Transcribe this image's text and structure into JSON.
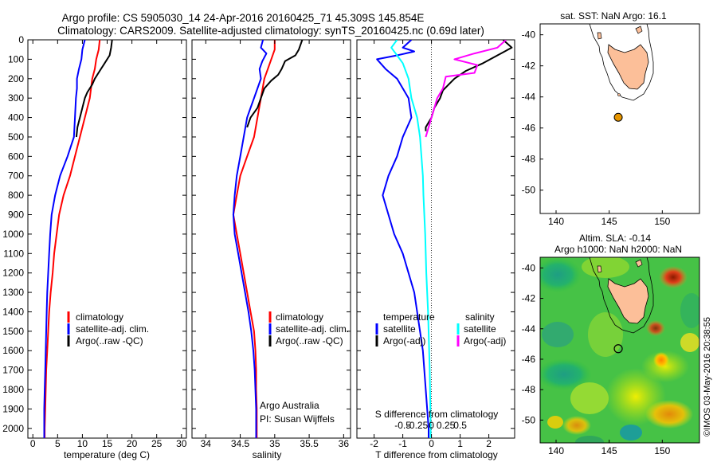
{
  "header": {
    "line1": "Argo profile: CS 5905030_14 24-Apr-2016 20160425_71 45.309S 145.854E",
    "line2": "Climatology: CARS2009. Satellite-adjusted climatology: synTS_20160425.nc (0.69d later)"
  },
  "colors": {
    "climatology": "#ff0000",
    "satellite": "#0000ff",
    "argo": "#000000",
    "salinity_satellite": "#00ffff",
    "salinity_argo": "#ff00ff",
    "land": "#fcbf99",
    "float_marker": "#e69500"
  },
  "depth_axis": {
    "min": 0,
    "max": 2050,
    "ticks": [
      0,
      100,
      200,
      300,
      400,
      500,
      600,
      700,
      800,
      900,
      1000,
      1100,
      1200,
      1300,
      1400,
      1500,
      1600,
      1700,
      1800,
      1900,
      2000
    ]
  },
  "chart_data": [
    {
      "type": "line",
      "id": "temperature",
      "xlabel": "temperature (deg C)",
      "xlim": [
        -1,
        31
      ],
      "xticks": [
        0,
        5,
        10,
        15,
        20,
        25,
        30
      ],
      "ylim": [
        2050,
        0
      ],
      "legend": [
        "climatology",
        "satellite-adj. clim.",
        "Argo(..raw -QC)"
      ],
      "series": [
        {
          "name": "climatology",
          "color": "#ff0000",
          "points": [
            [
              13.5,
              0
            ],
            [
              13.3,
              50
            ],
            [
              12.8,
              100
            ],
            [
              12.5,
              150
            ],
            [
              12.0,
              200
            ],
            [
              11.5,
              300
            ],
            [
              10.5,
              400
            ],
            [
              9.5,
              500
            ],
            [
              8.5,
              600
            ],
            [
              7.5,
              700
            ],
            [
              6.2,
              800
            ],
            [
              5.3,
              900
            ],
            [
              4.8,
              1000
            ],
            [
              4.3,
              1100
            ],
            [
              4.0,
              1200
            ],
            [
              3.6,
              1300
            ],
            [
              3.3,
              1400
            ],
            [
              3.1,
              1500
            ],
            [
              2.9,
              1600
            ],
            [
              2.7,
              1700
            ],
            [
              2.6,
              1800
            ],
            [
              2.5,
              1900
            ],
            [
              2.4,
              2000
            ],
            [
              2.4,
              2050
            ]
          ]
        },
        {
          "name": "satellite-adj. clim.",
          "color": "#0000ff",
          "points": [
            [
              10.5,
              0
            ],
            [
              10.0,
              50
            ],
            [
              9.8,
              100
            ],
            [
              9.3,
              150
            ],
            [
              8.9,
              200
            ],
            [
              8.9,
              250
            ],
            [
              8.7,
              300
            ],
            [
              8.5,
              400
            ],
            [
              8.3,
              500
            ],
            [
              7.0,
              600
            ],
            [
              5.5,
              700
            ],
            [
              4.5,
              800
            ],
            [
              3.8,
              900
            ],
            [
              3.5,
              1000
            ],
            [
              3.3,
              1100
            ],
            [
              3.1,
              1200
            ],
            [
              2.9,
              1300
            ],
            [
              2.8,
              1400
            ],
            [
              2.7,
              1500
            ],
            [
              2.6,
              1600
            ],
            [
              2.5,
              1700
            ],
            [
              2.4,
              1800
            ],
            [
              2.3,
              1900
            ],
            [
              2.3,
              2000
            ],
            [
              2.3,
              2050
            ]
          ]
        },
        {
          "name": "Argo(..raw -QC)",
          "color": "#000000",
          "points": [
            [
              16.0,
              0
            ],
            [
              15.8,
              40
            ],
            [
              15.5,
              80
            ],
            [
              14.5,
              120
            ],
            [
              13.5,
              160
            ],
            [
              12.5,
              200
            ],
            [
              12.0,
              230
            ],
            [
              11.0,
              270
            ],
            [
              10.5,
              300
            ],
            [
              10.0,
              350
            ],
            [
              9.5,
              400
            ],
            [
              9.0,
              450
            ],
            [
              8.8,
              500
            ]
          ]
        }
      ]
    },
    {
      "type": "line",
      "id": "salinity",
      "xlabel": "salinity",
      "xlim": [
        33.8,
        36.1
      ],
      "xticks": [
        34,
        34.5,
        35,
        35.5,
        36
      ],
      "ylim": [
        2050,
        0
      ],
      "legend": [
        "climatology",
        "satellite-adj. clim.",
        "Argo(..raw -QC)"
      ],
      "series": [
        {
          "name": "climatology",
          "color": "#ff0000",
          "points": [
            [
              35.0,
              0
            ],
            [
              35.0,
              50
            ],
            [
              34.95,
              100
            ],
            [
              34.9,
              150
            ],
            [
              34.85,
              200
            ],
            [
              34.8,
              300
            ],
            [
              34.75,
              400
            ],
            [
              34.7,
              500
            ],
            [
              34.6,
              600
            ],
            [
              34.5,
              700
            ],
            [
              34.45,
              800
            ],
            [
              34.4,
              900
            ],
            [
              34.45,
              1000
            ],
            [
              34.5,
              1100
            ],
            [
              34.55,
              1200
            ],
            [
              34.6,
              1300
            ],
            [
              34.65,
              1400
            ],
            [
              34.7,
              1500
            ],
            [
              34.72,
              1600
            ],
            [
              34.73,
              1700
            ],
            [
              34.73,
              1800
            ],
            [
              34.74,
              1900
            ],
            [
              34.74,
              2000
            ],
            [
              34.74,
              2050
            ]
          ]
        },
        {
          "name": "satellite-adj. clim.",
          "color": "#0000ff",
          "points": [
            [
              34.83,
              0
            ],
            [
              34.8,
              40
            ],
            [
              34.88,
              70
            ],
            [
              34.82,
              110
            ],
            [
              34.78,
              150
            ],
            [
              34.8,
              200
            ],
            [
              34.75,
              250
            ],
            [
              34.7,
              300
            ],
            [
              34.65,
              350
            ],
            [
              34.6,
              400
            ],
            [
              34.55,
              500
            ],
            [
              34.5,
              600
            ],
            [
              34.45,
              700
            ],
            [
              34.42,
              800
            ],
            [
              34.4,
              900
            ],
            [
              34.42,
              1000
            ],
            [
              34.47,
              1100
            ],
            [
              34.52,
              1200
            ],
            [
              34.57,
              1300
            ],
            [
              34.62,
              1400
            ],
            [
              34.66,
              1500
            ],
            [
              34.69,
              1600
            ],
            [
              34.71,
              1700
            ],
            [
              34.72,
              1800
            ],
            [
              34.73,
              1900
            ],
            [
              34.73,
              2000
            ],
            [
              34.73,
              2050
            ]
          ]
        },
        {
          "name": "Argo(..raw -QC)",
          "color": "#000000",
          "points": [
            [
              35.4,
              0
            ],
            [
              35.35,
              50
            ],
            [
              35.3,
              80
            ],
            [
              35.15,
              110
            ],
            [
              35.1,
              150
            ],
            [
              35.05,
              180
            ],
            [
              34.95,
              210
            ],
            [
              34.85,
              250
            ],
            [
              34.8,
              300
            ],
            [
              34.75,
              350
            ],
            [
              34.65,
              400
            ],
            [
              34.6,
              450
            ]
          ]
        }
      ]
    },
    {
      "type": "line",
      "id": "difference",
      "xlabel": "T difference from climatology",
      "xlabel_top": "S difference from climatology",
      "xlim": [
        -2.6,
        2.9
      ],
      "xticks": [
        -2,
        -1,
        0,
        1,
        2
      ],
      "xticks_top_values": [
        -0.5,
        -0.25,
        0,
        0.25,
        0.5
      ],
      "xticks_top_labels": [
        "-0.5",
        "-0.25",
        "0",
        "0.25",
        "0.5"
      ],
      "ylim": [
        2050,
        0
      ],
      "legend_titles": [
        "temperature",
        "salinity"
      ],
      "legend": [
        "satellite",
        "Argo(-adj)",
        "satellite",
        "Argo(-adj)"
      ],
      "series": [
        {
          "name": "satellite",
          "group": "temperature",
          "color": "#0000ff",
          "points": [
            [
              -0.7,
              0
            ],
            [
              -1.0,
              40
            ],
            [
              -0.6,
              60
            ],
            [
              -1.2,
              80
            ],
            [
              -1.9,
              100
            ],
            [
              -1.6,
              150
            ],
            [
              -1.2,
              200
            ],
            [
              -0.8,
              300
            ],
            [
              -0.7,
              400
            ],
            [
              -1.0,
              500
            ],
            [
              -1.2,
              600
            ],
            [
              -1.5,
              700
            ],
            [
              -1.7,
              800
            ],
            [
              -1.5,
              900
            ],
            [
              -1.3,
              1000
            ],
            [
              -1.0,
              1100
            ],
            [
              -0.8,
              1200
            ],
            [
              -0.6,
              1300
            ],
            [
              -0.5,
              1400
            ],
            [
              -0.4,
              1500
            ],
            [
              -0.3,
              1600
            ],
            [
              -0.25,
              1700
            ],
            [
              -0.2,
              1800
            ],
            [
              -0.15,
              1900
            ],
            [
              -0.1,
              2000
            ],
            [
              -0.1,
              2050
            ]
          ]
        },
        {
          "name": "Argo(-adj)",
          "group": "temperature",
          "color": "#000000",
          "points": [
            [
              2.5,
              0
            ],
            [
              2.8,
              40
            ],
            [
              2.3,
              80
            ],
            [
              1.8,
              120
            ],
            [
              1.2,
              160
            ],
            [
              0.8,
              200
            ],
            [
              0.6,
              230
            ],
            [
              0.4,
              260
            ],
            [
              0.3,
              300
            ],
            [
              0.1,
              350
            ],
            [
              0.0,
              400
            ],
            [
              -0.2,
              450
            ],
            [
              -0.2,
              470
            ]
          ]
        },
        {
          "name": "satellite",
          "group": "salinity",
          "color": "#00ffff",
          "points": [
            [
              -1.2,
              0
            ],
            [
              -1.4,
              40
            ],
            [
              -1.2,
              80
            ],
            [
              -1.0,
              120
            ],
            [
              -0.9,
              160
            ],
            [
              -0.8,
              200
            ],
            [
              -0.7,
              300
            ],
            [
              -0.5,
              400
            ],
            [
              -0.4,
              500
            ],
            [
              -0.35,
              600
            ],
            [
              -0.3,
              700
            ],
            [
              -0.28,
              800
            ],
            [
              -0.25,
              900
            ],
            [
              -0.22,
              1000
            ],
            [
              -0.2,
              1100
            ],
            [
              -0.18,
              1200
            ],
            [
              -0.15,
              1300
            ],
            [
              -0.12,
              1400
            ],
            [
              -0.1,
              1500
            ],
            [
              -0.08,
              1600
            ],
            [
              -0.06,
              1700
            ],
            [
              -0.05,
              1800
            ],
            [
              -0.04,
              1900
            ],
            [
              -0.03,
              2000
            ],
            [
              -0.03,
              2050
            ]
          ]
        },
        {
          "name": "Argo(-adj)",
          "group": "salinity",
          "color": "#ff00ff",
          "points": [
            [
              2.6,
              0
            ],
            [
              2.3,
              40
            ],
            [
              1.5,
              70
            ],
            [
              0.8,
              100
            ],
            [
              1.6,
              130
            ],
            [
              1.5,
              170
            ],
            [
              0.5,
              190
            ],
            [
              0.4,
              250
            ],
            [
              0.2,
              300
            ],
            [
              0.1,
              350
            ],
            [
              0.0,
              400
            ],
            [
              -0.1,
              450
            ],
            [
              -0.2,
              500
            ]
          ]
        }
      ]
    },
    {
      "type": "map",
      "id": "sst_map",
      "title": "sat. SST: NaN Argo: 16.1",
      "xlim": [
        138.5,
        153.5
      ],
      "ylim": [
        -51.5,
        -39.3
      ],
      "xticks": [
        140,
        145,
        150
      ],
      "yticks": [
        -40,
        -42,
        -44,
        -46,
        -48,
        -50
      ],
      "float_position": {
        "lon": 145.854,
        "lat": -45.309
      }
    },
    {
      "type": "map",
      "id": "sla_map",
      "title_line1": "Altim. SLA: -0.14",
      "title_line2": "Argo h1000: NaN h2000: NaN",
      "xlim": [
        138.5,
        153.5
      ],
      "ylim": [
        -51.5,
        -39.3
      ],
      "xticks": [
        140,
        145,
        150
      ],
      "yticks": [
        -40,
        -42,
        -44,
        -46,
        -48,
        -50
      ],
      "float_position": {
        "lon": 145.854,
        "lat": -45.309
      }
    }
  ],
  "annotations": {
    "argo_australia": "Argo Australia",
    "pi": "PI: Susan Wijffels",
    "watermark": "©IMOS 03-May-2016 20:38:55"
  }
}
